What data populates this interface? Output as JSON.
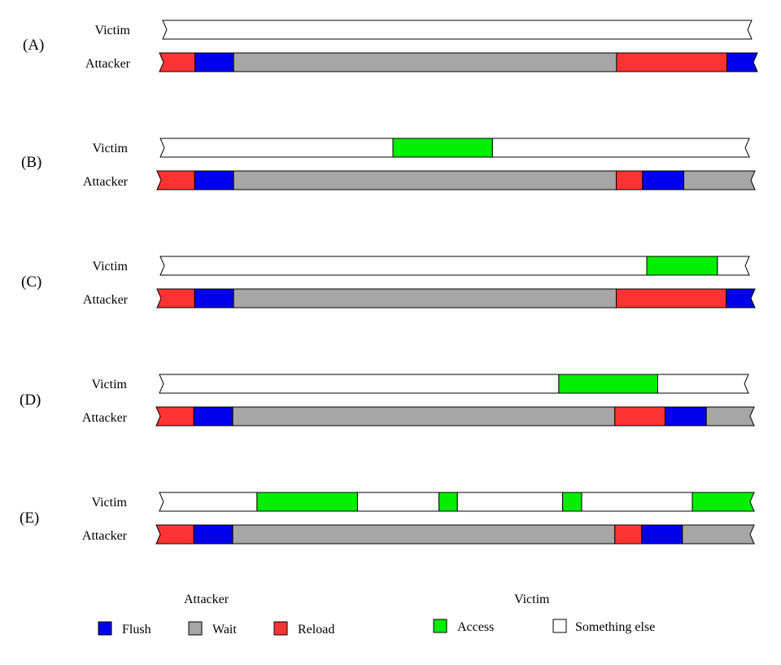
{
  "colors": {
    "flush": "#0000ee",
    "wait": "#a6a6a6",
    "reload": "#ff3333",
    "access": "#00ee00",
    "something_else": "#ffffff",
    "stroke": "#000000"
  },
  "track_labels": {
    "victim": "Victim",
    "attacker": "Attacker"
  },
  "scenarios": [
    {
      "id": "A",
      "label": "(A)",
      "victim": [
        [
          "something_else",
          0,
          100
        ]
      ],
      "attacker": [
        [
          "reload",
          0,
          5.95
        ],
        [
          "flush",
          5.95,
          12.4
        ],
        [
          "wait",
          12.4,
          76.45
        ],
        [
          "reload",
          76.45,
          94.9
        ],
        [
          "flush",
          94.9,
          100
        ]
      ]
    },
    {
      "id": "B",
      "label": "(B)",
      "victim": [
        [
          "something_else",
          0,
          39.5
        ],
        [
          "access",
          39.5,
          56.4
        ],
        [
          "something_else",
          56.4,
          100
        ]
      ],
      "attacker": [
        [
          "reload",
          0,
          6.3
        ],
        [
          "flush",
          6.3,
          12.8
        ],
        [
          "wait",
          12.8,
          76.8
        ],
        [
          "reload",
          76.8,
          81.2
        ],
        [
          "flush",
          81.2,
          88.1
        ],
        [
          "wait",
          88.1,
          100
        ]
      ]
    },
    {
      "id": "C",
      "label": "(C)",
      "victim": [
        [
          "something_else",
          0,
          82.6
        ],
        [
          "access",
          82.6,
          94.6
        ],
        [
          "something_else",
          94.6,
          100
        ]
      ],
      "attacker": [
        [
          "reload",
          0,
          6.3
        ],
        [
          "flush",
          6.3,
          12.8
        ],
        [
          "wait",
          12.8,
          76.8
        ],
        [
          "reload",
          76.8,
          95.2
        ],
        [
          "flush",
          95.2,
          100
        ]
      ]
    },
    {
      "id": "D",
      "label": "(D)",
      "victim": [
        [
          "something_else",
          0,
          67.8
        ],
        [
          "access",
          67.8,
          84.6
        ],
        [
          "something_else",
          84.6,
          100
        ]
      ],
      "attacker": [
        [
          "reload",
          0,
          6.3
        ],
        [
          "flush",
          6.3,
          12.8
        ],
        [
          "wait",
          12.8,
          76.7
        ],
        [
          "reload",
          76.7,
          85.1
        ],
        [
          "flush",
          85.1,
          92
        ],
        [
          "wait",
          92,
          100
        ]
      ]
    },
    {
      "id": "E",
      "label": "(E)",
      "victim": [
        [
          "something_else",
          0,
          16.4
        ],
        [
          "access",
          16.4,
          33.3
        ],
        [
          "something_else",
          33.3,
          47
        ],
        [
          "access",
          47,
          50.1
        ],
        [
          "something_else",
          50.1,
          67.8
        ],
        [
          "access",
          67.8,
          71
        ],
        [
          "something_else",
          71,
          89.6
        ],
        [
          "access",
          89.6,
          100
        ]
      ],
      "attacker": [
        [
          "reload",
          0,
          6.3
        ],
        [
          "flush",
          6.3,
          12.8
        ],
        [
          "wait",
          12.8,
          76.7
        ],
        [
          "reload",
          76.7,
          81.2
        ],
        [
          "flush",
          81.2,
          88
        ],
        [
          "wait",
          88,
          100
        ]
      ]
    }
  ],
  "legend": {
    "attacker": {
      "title": "Attacker",
      "items": [
        {
          "key": "flush",
          "label": "Flush"
        },
        {
          "key": "wait",
          "label": "Wait"
        },
        {
          "key": "reload",
          "label": "Reload"
        }
      ]
    },
    "victim": {
      "title": "Victim",
      "items": [
        {
          "key": "access",
          "label": "Access"
        },
        {
          "key": "something_else",
          "label": "Something else"
        }
      ]
    }
  }
}
